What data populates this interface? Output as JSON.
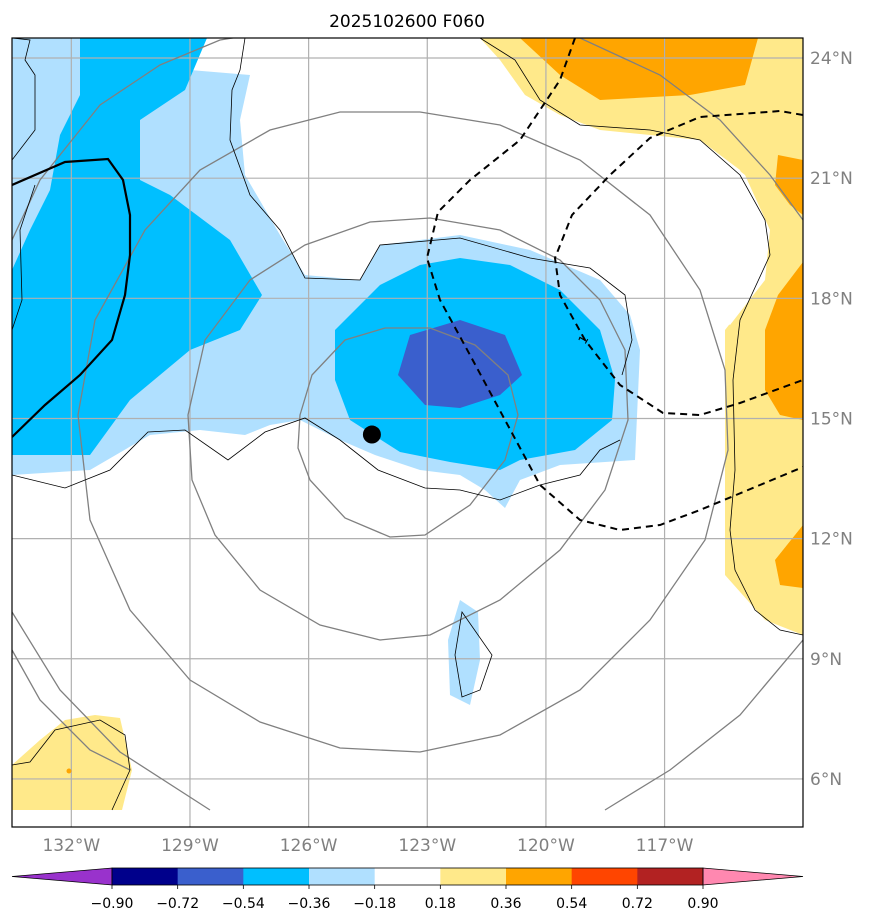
{
  "chart_data": {
    "type": "contour-map",
    "title": "2025102600 F060",
    "x_axis": {
      "ticks": [
        {
          "value": -132,
          "label": "132°W"
        },
        {
          "value": -129,
          "label": "129°W"
        },
        {
          "value": -126,
          "label": "126°W"
        },
        {
          "value": -123,
          "label": "123°W"
        },
        {
          "value": -120,
          "label": "120°W"
        },
        {
          "value": -117,
          "label": "117°W"
        }
      ],
      "range": [
        -133.5,
        -113.5
      ]
    },
    "y_axis": {
      "ticks": [
        {
          "value": 6,
          "label": "6°N"
        },
        {
          "value": 9,
          "label": "9°N"
        },
        {
          "value": 12,
          "label": "12°N"
        },
        {
          "value": 15,
          "label": "15°N"
        },
        {
          "value": 18,
          "label": "18°N"
        },
        {
          "value": 21,
          "label": "21°N"
        },
        {
          "value": 24,
          "label": "24°N"
        }
      ],
      "range": [
        4.8,
        24.5
      ]
    },
    "grid": true,
    "colorbar": {
      "levels": [
        "−0.90",
        "−0.72",
        "−0.54",
        "−0.36",
        "−0.18",
        "0.18",
        "0.36",
        "0.54",
        "0.72",
        "0.90"
      ],
      "colors": [
        "#9932cc",
        "#00008b",
        "#3a5fcd",
        "#00bfff",
        "#b0e0ff",
        "#ffffff",
        "#ffe98a",
        "#ffa500",
        "#ff4500",
        "#b22222",
        "#ff88b0"
      ],
      "extend": "both"
    },
    "center_marker": {
      "lon": -124.4,
      "lat": 14.6,
      "color": "#000000"
    },
    "range_rings": 5,
    "dashed_contour_label": "1",
    "colors": {
      "grid": "#b0b0b0",
      "rings": "#808080",
      "coast": "#000000",
      "light_blue": "#b0e0ff",
      "blue": "#00bfff",
      "dark_blue": "#3a5fcd",
      "yellow": "#ffe98a",
      "orange": "#ffa500"
    }
  }
}
